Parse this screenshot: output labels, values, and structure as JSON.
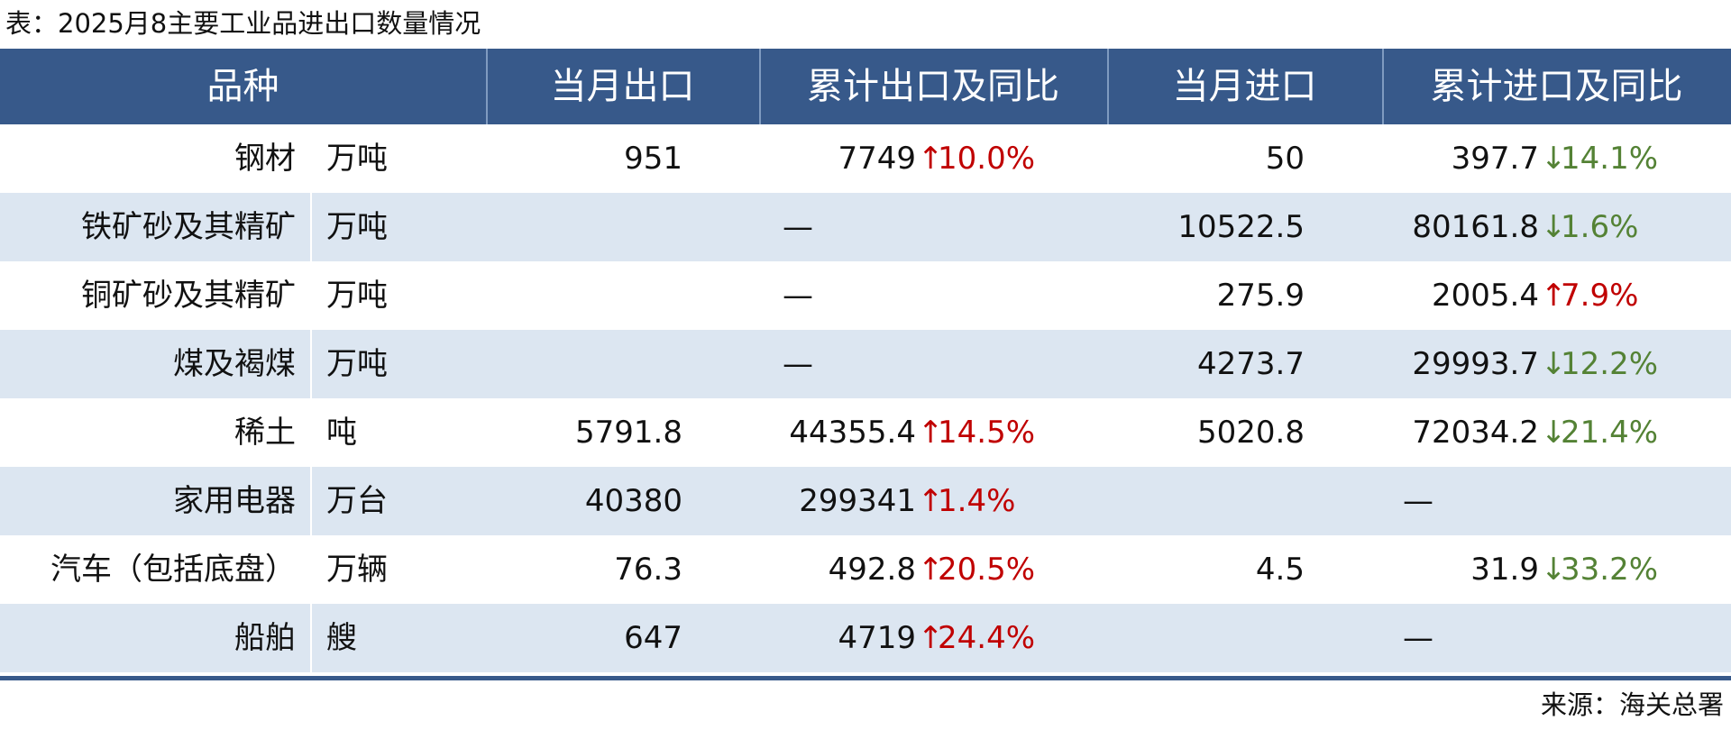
{
  "header": {
    "title": "表：2025月8主要工业品进出口数量情况"
  },
  "table": {
    "columns": [
      "品种",
      "当月出口",
      "累计出口及同比",
      "当月进口",
      "累计进口及同比"
    ],
    "rows": [
      {
        "name": "钢材",
        "unit": "万吨",
        "export_month": "951",
        "export_total": {
          "value": "7749",
          "arrow": "↑",
          "change": "10.0%",
          "color": "#c00000"
        },
        "import_month": "50",
        "import_total": {
          "value": "397.7",
          "arrow": "↓",
          "change": "14.1%",
          "color": "#548235"
        }
      },
      {
        "name": "铁矿砂及其精矿",
        "unit": "万吨",
        "export_month": null,
        "export_total": {
          "value": "—"
        },
        "import_month": "10522.5",
        "import_total": {
          "value": "80161.8",
          "arrow": "↓",
          "change": "1.6%",
          "color": "#548235"
        }
      },
      {
        "name": "铜矿砂及其精矿",
        "unit": "万吨",
        "export_month": null,
        "export_total": {
          "value": "—"
        },
        "import_month": "275.9",
        "import_total": {
          "value": "2005.4",
          "arrow": "↑",
          "change": "7.9%",
          "color": "#c00000"
        }
      },
      {
        "name": "煤及褐煤",
        "unit": "万吨",
        "export_month": null,
        "export_total": {
          "value": "—"
        },
        "import_month": "4273.7",
        "import_total": {
          "value": "29993.7",
          "arrow": "↓",
          "change": "12.2%",
          "color": "#548235"
        }
      },
      {
        "name": "稀土",
        "unit": "吨",
        "export_month": "5791.8",
        "export_total": {
          "value": "44355.4",
          "arrow": "↑",
          "change": "14.5%",
          "color": "#c00000"
        },
        "import_month": "5020.8",
        "import_total": {
          "value": "72034.2",
          "arrow": "↓",
          "change": "21.4%",
          "color": "#548235"
        }
      },
      {
        "name": "家用电器",
        "unit": "万台",
        "export_month": "40380",
        "export_total": {
          "value": "299341",
          "arrow": "↑",
          "change": "1.4%",
          "color": "#c00000"
        },
        "import_month": null,
        "import_total": {
          "value": "—"
        }
      },
      {
        "name": "汽车（包括底盘）",
        "unit": "万辆",
        "export_month": "76.3",
        "export_total": {
          "value": "492.8",
          "arrow": "↑",
          "change": "20.5%",
          "color": "#c00000"
        },
        "import_month": "4.5",
        "import_total": {
          "value": "31.9",
          "arrow": "↓",
          "change": "33.2%",
          "color": "#548235"
        }
      },
      {
        "name": "船舶",
        "unit": "艘",
        "export_month": "647",
        "export_total": {
          "value": "4719",
          "arrow": "↑",
          "change": "24.4%",
          "color": "#c00000"
        },
        "import_month": null,
        "import_total": {
          "value": "—"
        }
      }
    ]
  },
  "footer": {
    "source": "来源：海关总署"
  }
}
